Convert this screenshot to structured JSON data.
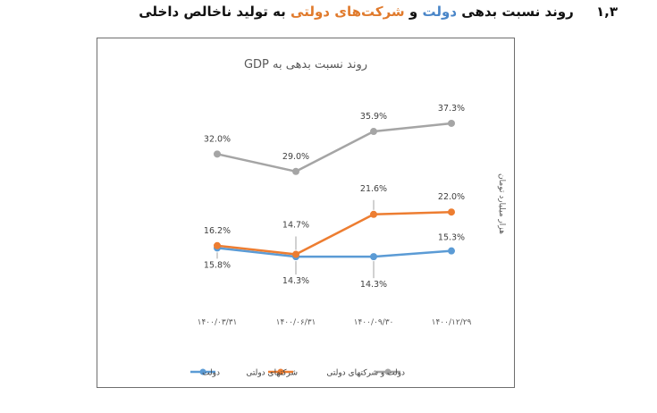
{
  "heading": {
    "number": "۱,۳",
    "part1": "روند نسبت بدهی",
    "part2": "دولت",
    "part3": "و",
    "part4": "شرکت‌های دولتی",
    "part5": "به تولید ناخالص داخلی"
  },
  "chart_data": {
    "type": "line",
    "title": "روند نسبت بدهی به GDP",
    "ylabel": "هزار میلیارد تومان",
    "xlabel": "",
    "categories": [
      "۱۴۰۰/۰۳/۳۱",
      "۱۴۰۰/۰۶/۳۱",
      "۱۴۰۰/۰۹/۳۰",
      "۱۴۰۰/۱۲/۲۹"
    ],
    "ylim": [
      8,
      45
    ],
    "grid": false,
    "legend_position": "bottom",
    "series": [
      {
        "name": "دولت",
        "color": "#5b9bd5",
        "values": [
          15.8,
          14.3,
          14.3,
          15.3
        ],
        "labels": [
          "15.8%",
          "14.3%",
          "14.3%",
          "15.3%"
        ]
      },
      {
        "name": "شرکتهای دولتی",
        "color": "#ed7d31",
        "values": [
          16.2,
          14.7,
          21.6,
          22.0
        ],
        "labels": [
          "16.2%",
          "14.7%",
          "21.6%",
          "22.0%"
        ]
      },
      {
        "name": "دولت و شرکتهای دولتی",
        "color": "#a5a5a5",
        "values": [
          32.0,
          29.0,
          35.9,
          37.3
        ],
        "labels": [
          "32.0%",
          "29.0%",
          "35.9%",
          "37.3%"
        ]
      }
    ]
  }
}
